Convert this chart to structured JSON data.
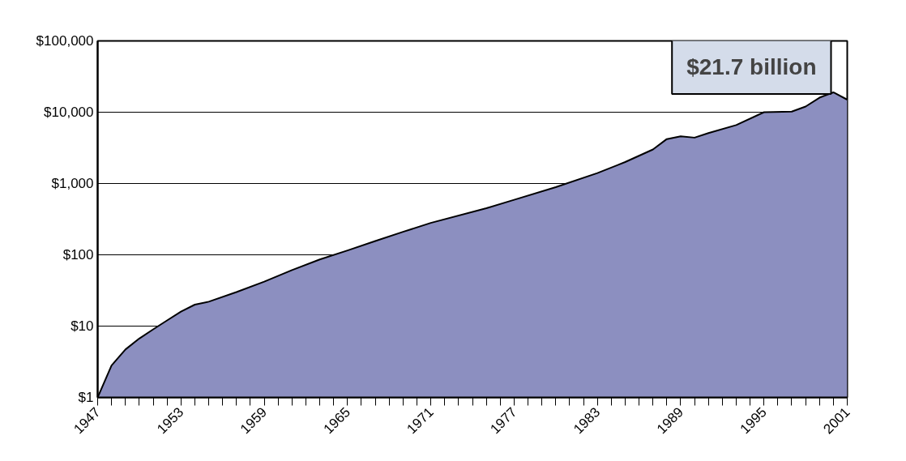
{
  "chart_data": {
    "type": "area",
    "log": "y",
    "grid": "y",
    "annotations": [
      "$21.7 billion"
    ],
    "x": [
      1947,
      1948,
      1949,
      1950,
      1951,
      1952,
      1953,
      1954,
      1955,
      1957,
      1959,
      1961,
      1963,
      1965,
      1967,
      1969,
      1971,
      1975,
      1977,
      1980,
      1983,
      1985,
      1987,
      1988,
      1989,
      1990,
      1991,
      1993,
      1995,
      1997,
      1998,
      1999,
      2000,
      2001
    ],
    "series": [
      {
        "color": "#8c8fc0",
        "values": [
          1,
          2.8,
          4.7,
          6.7,
          9,
          12,
          16,
          20,
          22,
          30,
          42,
          61,
          86,
          115,
          156,
          210,
          280,
          450,
          590,
          890,
          1400,
          2000,
          3000,
          4200,
          4600,
          4400,
          5100,
          6600,
          10000,
          10200,
          12000,
          16000,
          19000,
          15000
        ]
      }
    ],
    "xlim": [
      1947,
      2001
    ],
    "ylim": [
      1,
      100000
    ],
    "xticks": [
      1947,
      {
        "value": 1948,
        "label": null
      },
      {
        "value": 1949,
        "label": null
      },
      {
        "value": 1950,
        "label": null
      },
      {
        "value": 1951,
        "label": null
      },
      {
        "value": 1952,
        "label": null
      },
      1953,
      {
        "value": 1954,
        "label": null
      },
      {
        "value": 1955,
        "label": null
      },
      {
        "value": 1956,
        "label": null
      },
      {
        "value": 1957,
        "label": null
      },
      {
        "value": 1958,
        "label": null
      },
      1959,
      {
        "value": 1960,
        "label": null
      },
      {
        "value": 1961,
        "label": null
      },
      {
        "value": 1962,
        "label": null
      },
      {
        "value": 1963,
        "label": null
      },
      {
        "value": 1964,
        "label": null
      },
      1965,
      {
        "value": 1966,
        "label": null
      },
      {
        "value": 1967,
        "label": null
      },
      {
        "value": 1968,
        "label": null
      },
      {
        "value": 1969,
        "label": null
      },
      {
        "value": 1970,
        "label": null
      },
      1971,
      {
        "value": 1972,
        "label": null
      },
      {
        "value": 1973,
        "label": null
      },
      {
        "value": 1974,
        "label": null
      },
      {
        "value": 1975,
        "label": null
      },
      {
        "value": 1976,
        "label": null
      },
      1977,
      {
        "value": 1978,
        "label": null
      },
      {
        "value": 1979,
        "label": null
      },
      {
        "value": 1980,
        "label": null
      },
      {
        "value": 1981,
        "label": null
      },
      {
        "value": 1982,
        "label": null
      },
      1983,
      {
        "value": 1984,
        "label": null
      },
      {
        "value": 1985,
        "label": null
      },
      {
        "value": 1986,
        "label": null
      },
      {
        "value": 1987,
        "label": null
      },
      {
        "value": 1988,
        "label": null
      },
      1989,
      {
        "value": 1990,
        "label": null
      },
      {
        "value": 1991,
        "label": null
      },
      {
        "value": 1992,
        "label": null
      },
      {
        "value": 1993,
        "label": null
      },
      {
        "value": 1994,
        "label": null
      },
      1995,
      {
        "value": 1996,
        "label": null
      },
      {
        "value": 1997,
        "label": null
      },
      {
        "value": 1998,
        "label": null
      },
      {
        "value": 1999,
        "label": null
      },
      {
        "value": 2000,
        "label": null
      },
      2001
    ],
    "yticks": [
      {
        "value": 1,
        "label": "$1"
      },
      {
        "value": 10,
        "label": "$10"
      },
      {
        "value": 100,
        "label": "$100"
      },
      {
        "value": 1000,
        "label": "$1,000"
      },
      {
        "value": 10000,
        "label": "$10,000"
      },
      {
        "value": 100000,
        "label": "$100,000"
      }
    ]
  }
}
